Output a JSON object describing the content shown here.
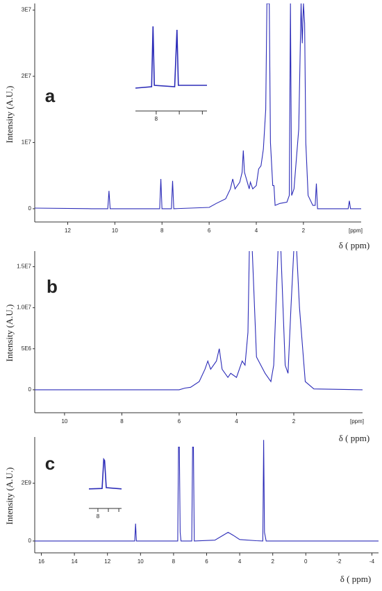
{
  "chart_data": [
    {
      "type": "line",
      "panel": "a",
      "ylabel": "Intensity (A.U.)",
      "xlabel": "δ ( ppm)",
      "xunit": "[ppm]",
      "color": "#2b2bb8",
      "xlim": [
        13.4,
        -0.45
      ],
      "xticks": [
        12,
        10,
        8,
        6,
        4,
        2
      ],
      "ylim": [
        -2000000,
        31000000
      ],
      "yticks": [
        0,
        {
          "value": 10000000,
          "label": "1E7"
        },
        {
          "value": 20000000,
          "label": "2E7"
        },
        {
          "value": 30000000,
          "label": "3E7"
        }
      ],
      "x": [
        13.4,
        11,
        10.3,
        10.25,
        10.2,
        8.1,
        8.05,
        8.0,
        7.6,
        7.55,
        7.5,
        6.0,
        5.7,
        5.3,
        5.1,
        5.0,
        4.9,
        4.7,
        4.6,
        4.55,
        4.5,
        4.3,
        4.25,
        4.15,
        4.0,
        3.9,
        3.8,
        3.7,
        3.6,
        3.55,
        3.45,
        3.4,
        3.3,
        3.25,
        3.2,
        3.0,
        2.7,
        2.6,
        2.55,
        2.5,
        2.4,
        2.2,
        2.1,
        2.05,
        2.0,
        1.95,
        1.9,
        1.8,
        1.6,
        1.5,
        1.45,
        1.4,
        0.1,
        0.05,
        0,
        -0.45
      ],
      "values": [
        100000.0,
        0,
        0,
        2700000.0,
        0,
        0,
        4500000.0,
        0,
        0,
        4200000.0,
        0,
        200000.0,
        800000.0,
        1500000.0,
        3000000.0,
        4500000.0,
        3000000.0,
        4000000.0,
        5500000.0,
        8800000.0,
        5500000.0,
        3000000.0,
        4000000.0,
        3000000.0,
        3500000.0,
        6000000.0,
        6500000.0,
        9000000.0,
        15000000.0,
        31000000.0,
        31000000.0,
        10000000.0,
        3500000.0,
        3500000.0,
        500000.0,
        800000.0,
        1000000.0,
        2000000.0,
        31000000.0,
        2000000.0,
        3000000.0,
        12000000.0,
        31000000.0,
        25000000.0,
        31000000.0,
        28000000.0,
        10000000.0,
        2000000.0,
        500000.0,
        500000.0,
        3800000.0,
        0,
        0,
        1200000.0,
        0,
        0
      ],
      "inset": {
        "xlim": [
          8.45,
          6.9
        ],
        "ylim": [
          0,
          1
        ],
        "xticks": [
          {
            "value": 8,
            "label": "8"
          },
          {
            "value": 7.5,
            "label": null
          },
          {
            "value": 7.0,
            "label": null
          }
        ],
        "x": [
          8.45,
          8.1,
          8.07,
          8.04,
          7.6,
          7.55,
          7.52,
          6.9
        ],
        "values": [
          0.08,
          0.1,
          0.97,
          0.12,
          0.1,
          0.92,
          0.12,
          0.12
        ]
      }
    },
    {
      "type": "line",
      "panel": "b",
      "ylabel": "Intensity (A.U.)",
      "xlabel": "δ ( ppm)",
      "xunit": "[ppm]",
      "color": "#2b2bb8",
      "xlim": [
        11.04,
        -0.4
      ],
      "xticks": [
        10,
        8,
        6,
        4,
        2
      ],
      "ylim": [
        -2800000,
        16900000
      ],
      "yticks": [
        0,
        {
          "value": 5000000,
          "label": "5E6"
        },
        {
          "value": 10000000,
          "label": "1.0E7"
        },
        {
          "value": 15000000,
          "label": "1.5E7"
        }
      ],
      "x": [
        11.04,
        6,
        5.8,
        5.6,
        5.3,
        5.1,
        5.0,
        4.9,
        4.7,
        4.6,
        4.5,
        4.3,
        4.2,
        4.0,
        3.9,
        3.8,
        3.7,
        3.6,
        3.55,
        3.45,
        3.3,
        3.0,
        2.8,
        2.7,
        2.55,
        2.45,
        2.3,
        2.2,
        2.1,
        2.0,
        1.9,
        1.8,
        1.6,
        1.3,
        -0.4
      ],
      "values": [
        0,
        0,
        200000.0,
        300000.0,
        1000000.0,
        2500000.0,
        3500000.0,
        2500000.0,
        3500000.0,
        5000000.0,
        2500000.0,
        1500000.0,
        2000000.0,
        1500000.0,
        2500000.0,
        3500000.0,
        3000000.0,
        7000000.0,
        17000000.0,
        17000000.0,
        4000000.0,
        2000000.0,
        1000000.0,
        3000000.0,
        17000000.0,
        17000000.0,
        3000000.0,
        2000000.0,
        10000000.0,
        17000000.0,
        17000000.0,
        10000000.0,
        1000000.0,
        100000.0,
        0
      ]
    },
    {
      "type": "line",
      "panel": "c",
      "ylabel": "Intensity (A.U.)",
      "xlabel": "δ ( ppm)",
      "color": "#2b2bb8",
      "xlim": [
        16.4,
        -4.4
      ],
      "xticks": [
        16,
        14,
        12,
        10,
        8,
        6,
        4,
        2,
        0,
        -2,
        -4
      ],
      "ylim": [
        -410000000,
        3600000000
      ],
      "yticks": [
        0,
        {
          "value": 2000000000,
          "label": "2E9"
        }
      ],
      "x": [
        16.4,
        10.35,
        10.3,
        10.25,
        7.75,
        7.7,
        7.65,
        7.6,
        7.55,
        6.9,
        6.85,
        6.8,
        6.75,
        5.5,
        5.0,
        4.7,
        4.4,
        4.0,
        3.0,
        2.6,
        2.55,
        2.5,
        2.4,
        -4.4
      ],
      "values": [
        0,
        0,
        600000000.0,
        0,
        0,
        3250000000.0,
        3250000000.0,
        300000000.0,
        0,
        0,
        3250000000.0,
        3250000000.0,
        0,
        30000000.0,
        200000000.0,
        300000000.0,
        200000000.0,
        50000000.0,
        10000000.0,
        0,
        3500000000.0,
        300000000.0,
        0,
        0
      ],
      "inset": {
        "xlim": [
          8.43,
          6.87
        ],
        "ylim": [
          0,
          1
        ],
        "xticks": [
          {
            "value": 8,
            "label": "8"
          },
          {
            "value": 7.5,
            "label": null
          },
          {
            "value": 7.0,
            "label": null
          }
        ],
        "x": [
          8.43,
          7.8,
          7.72,
          7.68,
          7.6,
          6.87
        ],
        "values": [
          0.17,
          0.18,
          0.88,
          0.85,
          0.2,
          0.17
        ]
      }
    }
  ]
}
